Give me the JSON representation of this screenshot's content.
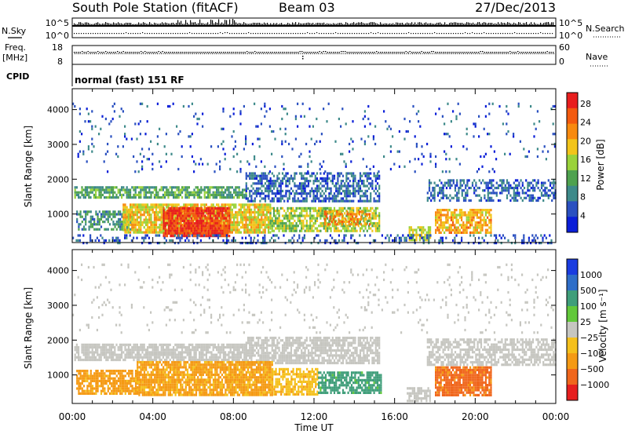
{
  "header": {
    "station": "South Pole Station (fitACF)",
    "beam": "Beam 03",
    "date": "27/Dec/2013"
  },
  "strips": {
    "nsky": {
      "label": "N.Sky",
      "ticks": [
        "10^5",
        "10^0"
      ]
    },
    "nsearch": {
      "label": "N.Search",
      "ticks": [
        "10^5",
        "10^0"
      ]
    },
    "freq": {
      "label_top": "Freq.",
      "label_unit": "[MHz]",
      "ticks": [
        "18",
        "8"
      ]
    },
    "nave": {
      "label": "Nave",
      "ticks": [
        "60",
        "0"
      ]
    },
    "cpid": {
      "label": "CPID",
      "value": "normal (fast) 151 RF"
    }
  },
  "chart_data": [
    {
      "type": "heatmap",
      "title": "",
      "xlabel": "Time UT",
      "ylabel": "Slant Range [km]",
      "x_ticks": [
        "00:00",
        "04:00",
        "08:00",
        "12:00",
        "16:00",
        "20:00",
        "00:00"
      ],
      "x_range_hours": [
        0,
        24
      ],
      "y_ticks": [
        1000,
        2000,
        3000,
        4000
      ],
      "y_range_km": [
        180,
        4600
      ],
      "colorbar": {
        "label": "Power [dB]",
        "ticks": [
          "4",
          "8",
          "12",
          "16",
          "20",
          "24",
          "28"
        ],
        "range": [
          0,
          30
        ],
        "colors": [
          "#0a1ed8",
          "#2a50c0",
          "#3e8a8a",
          "#4fa24f",
          "#9ad23a",
          "#f2c419",
          "#f88a0f",
          "#f35a0f",
          "#e81e1e"
        ]
      },
      "regions": [
        {
          "t0": 0.1,
          "t1": 8.6,
          "r0": 1450,
          "r1": 1800,
          "value": 11,
          "density": 0.75
        },
        {
          "t0": 8.6,
          "t1": 15.2,
          "r0": 1350,
          "r1": 2200,
          "value": 6,
          "density": 0.6
        },
        {
          "t0": 17.6,
          "t1": 24,
          "r0": 1400,
          "r1": 2000,
          "value": 6,
          "density": 0.5
        },
        {
          "t0": 0.2,
          "t1": 3.0,
          "r0": 550,
          "r1": 1100,
          "value": 9,
          "density": 0.55
        },
        {
          "t0": 2.5,
          "t1": 9.8,
          "r0": 450,
          "r1": 1300,
          "value": 18,
          "density": 0.85
        },
        {
          "t0": 4.5,
          "t1": 7.8,
          "r0": 400,
          "r1": 1200,
          "value": 27,
          "density": 0.9
        },
        {
          "t0": 9.8,
          "t1": 15.2,
          "r0": 500,
          "r1": 1200,
          "value": 15,
          "density": 0.7
        },
        {
          "t0": 12.5,
          "t1": 14.8,
          "r0": 700,
          "r1": 1100,
          "value": 22,
          "density": 0.6
        },
        {
          "t0": 16.7,
          "t1": 17.8,
          "r0": 250,
          "r1": 650,
          "value": 16,
          "density": 0.7
        },
        {
          "t0": 18.0,
          "t1": 20.8,
          "r0": 450,
          "r1": 1150,
          "value": 20,
          "density": 0.75
        },
        {
          "t0": 0,
          "t1": 24,
          "r0": 200,
          "r1": 420,
          "value": 5,
          "density": 0.25
        },
        {
          "t0": 0,
          "t1": 24,
          "r0": 2200,
          "r1": 4200,
          "value": 5,
          "density": 0.05
        }
      ]
    },
    {
      "type": "heatmap",
      "title": "",
      "xlabel": "Time UT",
      "ylabel": "Slant Range [km]",
      "x_ticks": [
        "00:00",
        "04:00",
        "08:00",
        "12:00",
        "16:00",
        "20:00",
        "00:00"
      ],
      "x_range_hours": [
        0,
        24
      ],
      "y_ticks": [
        1000,
        2000,
        3000,
        4000
      ],
      "y_range_km": [
        180,
        4600
      ],
      "colorbar": {
        "label": "Velocity [m s⁻¹]",
        "ticks": [
          "1000",
          "500",
          "100",
          "25",
          "−25",
          "−100",
          "−500",
          "−1000"
        ],
        "colors": [
          "#1a3ce0",
          "#2f6ec8",
          "#3f9e7a",
          "#62c83a",
          "#c6c6c0",
          "#f5c01c",
          "#f59a14",
          "#f0661c",
          "#e61e1e"
        ]
      },
      "regions": [
        {
          "t0": 0.1,
          "t1": 8.6,
          "r0": 1450,
          "r1": 1900,
          "value": 0,
          "density": 0.8
        },
        {
          "t0": 8.6,
          "t1": 15.2,
          "r0": 1350,
          "r1": 2100,
          "value": 0,
          "density": 0.75
        },
        {
          "t0": 17.6,
          "t1": 24,
          "r0": 1300,
          "r1": 2050,
          "value": 0,
          "density": 0.65
        },
        {
          "t0": 0.2,
          "t1": 3.2,
          "r0": 450,
          "r1": 1150,
          "value": -150,
          "density": 0.8
        },
        {
          "t0": 3.2,
          "t1": 9.9,
          "r0": 420,
          "r1": 1400,
          "value": -130,
          "density": 0.85
        },
        {
          "t0": 9.9,
          "t1": 12.2,
          "r0": 450,
          "r1": 1200,
          "value": -80,
          "density": 0.7
        },
        {
          "t0": 12.2,
          "t1": 15.3,
          "r0": 500,
          "r1": 1100,
          "value": 150,
          "density": 0.75
        },
        {
          "t0": 16.6,
          "t1": 17.8,
          "r0": 230,
          "r1": 650,
          "value": 0,
          "density": 0.7
        },
        {
          "t0": 18.0,
          "t1": 20.8,
          "r0": 450,
          "r1": 1250,
          "value": -700,
          "density": 0.85
        },
        {
          "t0": 0,
          "t1": 24,
          "r0": 2200,
          "r1": 4200,
          "value": 0,
          "density": 0.05
        }
      ]
    }
  ]
}
